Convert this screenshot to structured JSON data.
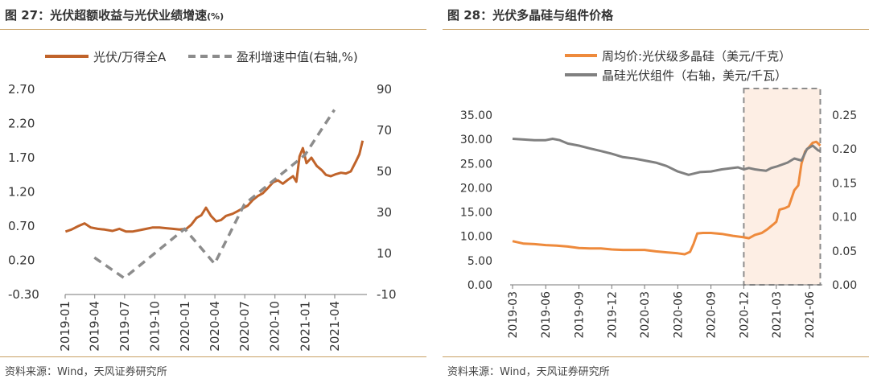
{
  "left": {
    "title": "图 27：光伏超额收益与光伏业绩增速",
    "title_unit": "(%)",
    "source": "资料来源：Wind，天风证券研究所",
    "chart_data": {
      "type": "line",
      "y_ticks": [
        "2.70",
        "2.20",
        "1.70",
        "1.20",
        "0.70",
        "0.20",
        "-0.30"
      ],
      "y2_ticks": [
        "90",
        "70",
        "50",
        "30",
        "10",
        "-10"
      ],
      "x_ticks": [
        "2019-01",
        "2019-04",
        "2019-07",
        "2019-10",
        "2020-01",
        "2020-04",
        "2020-07",
        "2020-10",
        "2021-01",
        "2021-04"
      ],
      "ylim": [
        -0.3,
        2.7
      ],
      "y2lim": [
        -10,
        90
      ],
      "series": [
        {
          "name": "光伏/万得全A",
          "color": "#c0632a",
          "style": "solid",
          "axis": "left",
          "x": [
            "2019-01-02",
            "2019-01-20",
            "2019-02-10",
            "2019-03-01",
            "2019-03-20",
            "2019-04-10",
            "2019-05-01",
            "2019-05-25",
            "2019-06-15",
            "2019-07-05",
            "2019-07-25",
            "2019-08-15",
            "2019-09-05",
            "2019-09-25",
            "2019-10-15",
            "2019-11-05",
            "2019-11-25",
            "2019-12-15",
            "2020-01-05",
            "2020-01-20",
            "2020-02-05",
            "2020-02-20",
            "2020-03-05",
            "2020-03-20",
            "2020-04-05",
            "2020-04-20",
            "2020-05-05",
            "2020-05-25",
            "2020-06-10",
            "2020-06-25",
            "2020-07-10",
            "2020-07-25",
            "2020-08-10",
            "2020-08-25",
            "2020-09-10",
            "2020-09-25",
            "2020-10-10",
            "2020-10-25",
            "2020-11-10",
            "2020-11-25",
            "2020-12-05",
            "2020-12-15",
            "2020-12-25",
            "2021-01-05",
            "2021-01-20",
            "2021-02-05",
            "2021-02-20",
            "2021-03-05",
            "2021-03-20",
            "2021-04-05",
            "2021-04-20",
            "2021-05-05",
            "2021-05-20",
            "2021-06-05",
            "2021-06-15",
            "2021-06-25"
          ],
          "y": [
            0.62,
            0.65,
            0.7,
            0.74,
            0.68,
            0.66,
            0.65,
            0.63,
            0.66,
            0.62,
            0.62,
            0.64,
            0.66,
            0.68,
            0.68,
            0.67,
            0.66,
            0.65,
            0.66,
            0.72,
            0.82,
            0.86,
            0.97,
            0.85,
            0.77,
            0.79,
            0.85,
            0.88,
            0.92,
            0.96,
            1.0,
            1.08,
            1.14,
            1.18,
            1.26,
            1.34,
            1.37,
            1.32,
            1.38,
            1.43,
            1.35,
            1.72,
            1.84,
            1.62,
            1.7,
            1.58,
            1.52,
            1.45,
            1.43,
            1.46,
            1.48,
            1.47,
            1.5,
            1.65,
            1.75,
            1.95
          ]
        },
        {
          "name": "盈利增速中值(右轴,%)",
          "color": "#8c8c8c",
          "style": "dashed",
          "axis": "right",
          "x": [
            "2019-03-31",
            "2019-06-30",
            "2019-09-30",
            "2019-12-31",
            "2020-03-31",
            "2020-06-30",
            "2020-09-30",
            "2020-12-31",
            "2021-03-31"
          ],
          "y": [
            8,
            -2,
            10,
            22,
            5,
            34,
            46,
            58,
            80
          ]
        }
      ]
    }
  },
  "right": {
    "title": "图 28：光伏多晶硅与组件价格",
    "source": "资料来源：Wind，天风证券研究所",
    "chart_data": {
      "type": "line",
      "y_ticks": [
        "35.00",
        "30.00",
        "25.00",
        "20.00",
        "15.00",
        "10.00",
        "5.00",
        "0.00"
      ],
      "y2_ticks": [
        "0.25",
        "0.20",
        "0.15",
        "0.10",
        "0.05",
        "0.00"
      ],
      "x_ticks": [
        "2019-03",
        "2019-06",
        "2019-09",
        "2019-12",
        "2020-03",
        "2020-06",
        "2020-09",
        "2020-12",
        "2021-03",
        "2021-06"
      ],
      "ylim": [
        0,
        35
      ],
      "y2lim": [
        0,
        0.25
      ],
      "highlight": {
        "start": "2020-12",
        "end": "2021-07"
      },
      "series": [
        {
          "name": "周均价:光伏级多晶硅（美元/千克）",
          "color": "#ee8a3c",
          "style": "solid",
          "axis": "left",
          "x": [
            "2019-03-01",
            "2019-04-01",
            "2019-05-01",
            "2019-06-01",
            "2019-07-01",
            "2019-08-01",
            "2019-09-01",
            "2019-10-01",
            "2019-11-01",
            "2019-12-01",
            "2020-01-01",
            "2020-02-01",
            "2020-03-01",
            "2020-04-01",
            "2020-05-01",
            "2020-06-01",
            "2020-06-20",
            "2020-07-05",
            "2020-07-15",
            "2020-07-25",
            "2020-08-10",
            "2020-09-01",
            "2020-10-01",
            "2020-11-01",
            "2020-12-01",
            "2020-12-15",
            "2021-01-01",
            "2021-01-20",
            "2021-02-05",
            "2021-02-20",
            "2021-03-01",
            "2021-03-10",
            "2021-03-25",
            "2021-04-05",
            "2021-04-20",
            "2021-05-01",
            "2021-05-10",
            "2021-05-20",
            "2021-06-01",
            "2021-06-10",
            "2021-06-20",
            "2021-07-01"
          ],
          "y": [
            9.0,
            8.5,
            8.4,
            8.2,
            8.1,
            7.9,
            7.6,
            7.5,
            7.5,
            7.3,
            7.2,
            7.2,
            7.2,
            6.9,
            6.7,
            6.5,
            6.3,
            6.8,
            8.5,
            10.6,
            10.7,
            10.7,
            10.5,
            10.1,
            9.8,
            9.6,
            10.3,
            10.7,
            11.5,
            12.4,
            13.0,
            15.5,
            15.8,
            16.2,
            19.5,
            20.5,
            25.0,
            27.5,
            28.5,
            29.3,
            29.5,
            28.7
          ]
        },
        {
          "name": "晶硅光伏组件（右轴，美元/千瓦）",
          "color": "#808080",
          "style": "solid",
          "axis": "right",
          "x": [
            "2019-03-01",
            "2019-04-01",
            "2019-05-01",
            "2019-06-01",
            "2019-06-20",
            "2019-07-10",
            "2019-08-01",
            "2019-09-01",
            "2019-10-01",
            "2019-11-01",
            "2019-12-01",
            "2020-01-01",
            "2020-02-01",
            "2020-03-01",
            "2020-04-01",
            "2020-05-01",
            "2020-06-01",
            "2020-07-01",
            "2020-08-01",
            "2020-09-01",
            "2020-10-01",
            "2020-11-01",
            "2020-11-15",
            "2020-12-01",
            "2020-12-15",
            "2021-01-01",
            "2021-01-15",
            "2021-02-01",
            "2021-02-15",
            "2021-03-01",
            "2021-04-01",
            "2021-04-20",
            "2021-05-10",
            "2021-05-25",
            "2021-06-10",
            "2021-06-25",
            "2021-07-01"
          ],
          "y": [
            0.215,
            0.214,
            0.213,
            0.213,
            0.215,
            0.213,
            0.208,
            0.205,
            0.201,
            0.197,
            0.193,
            0.188,
            0.186,
            0.183,
            0.18,
            0.175,
            0.167,
            0.162,
            0.166,
            0.167,
            0.17,
            0.172,
            0.173,
            0.17,
            0.172,
            0.17,
            0.169,
            0.168,
            0.172,
            0.174,
            0.18,
            0.186,
            0.183,
            0.2,
            0.205,
            0.198,
            0.197
          ]
        }
      ]
    }
  }
}
